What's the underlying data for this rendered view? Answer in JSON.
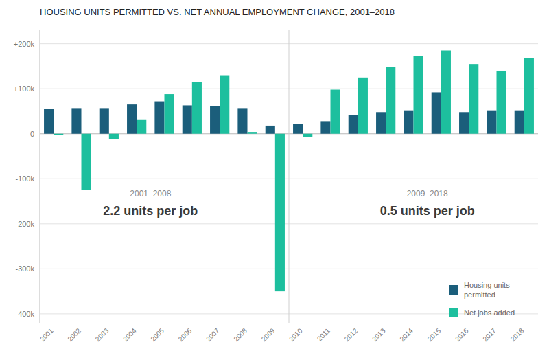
{
  "chart_data": {
    "type": "bar",
    "title": "HOUSING UNITS PERMITTED VS. NET ANNUAL EMPLOYMENT CHANGE, 2001–2018",
    "categories": [
      "2001",
      "2002",
      "2003",
      "2004",
      "2005",
      "2006",
      "2007",
      "2008",
      "2009",
      "2010",
      "2011",
      "2012",
      "2013",
      "2014",
      "2015",
      "2016",
      "2017",
      "2018"
    ],
    "series": [
      {
        "name": "Housing units\npermitted",
        "color": "#1b5e7b",
        "values": [
          55000,
          57000,
          57000,
          65000,
          72000,
          63000,
          62000,
          57000,
          18000,
          22000,
          28000,
          42000,
          48000,
          52000,
          92000,
          48000,
          52000,
          52000
        ]
      },
      {
        "name": "Net jobs added",
        "color": "#1dbf9e",
        "values": [
          -3000,
          -125000,
          -12000,
          32000,
          88000,
          115000,
          130000,
          4000,
          -350000,
          -8000,
          98000,
          125000,
          148000,
          172000,
          185000,
          155000,
          140000,
          168000
        ]
      }
    ],
    "ylim": [
      -420000,
      230000
    ],
    "yticks": [
      {
        "value": -400000,
        "label": "-400k"
      },
      {
        "value": -300000,
        "label": "-300k"
      },
      {
        "value": -200000,
        "label": "-200k"
      },
      {
        "value": -100000,
        "label": "-100k"
      },
      0,
      {
        "value": 100000,
        "label": "+100k"
      },
      {
        "value": 200000,
        "label": "+200k"
      }
    ],
    "annotations": [
      "2001–2008",
      "2.2 units per job",
      "2009–2018",
      "0.5 units per job"
    ],
    "grid": true,
    "legend": "lower right"
  }
}
